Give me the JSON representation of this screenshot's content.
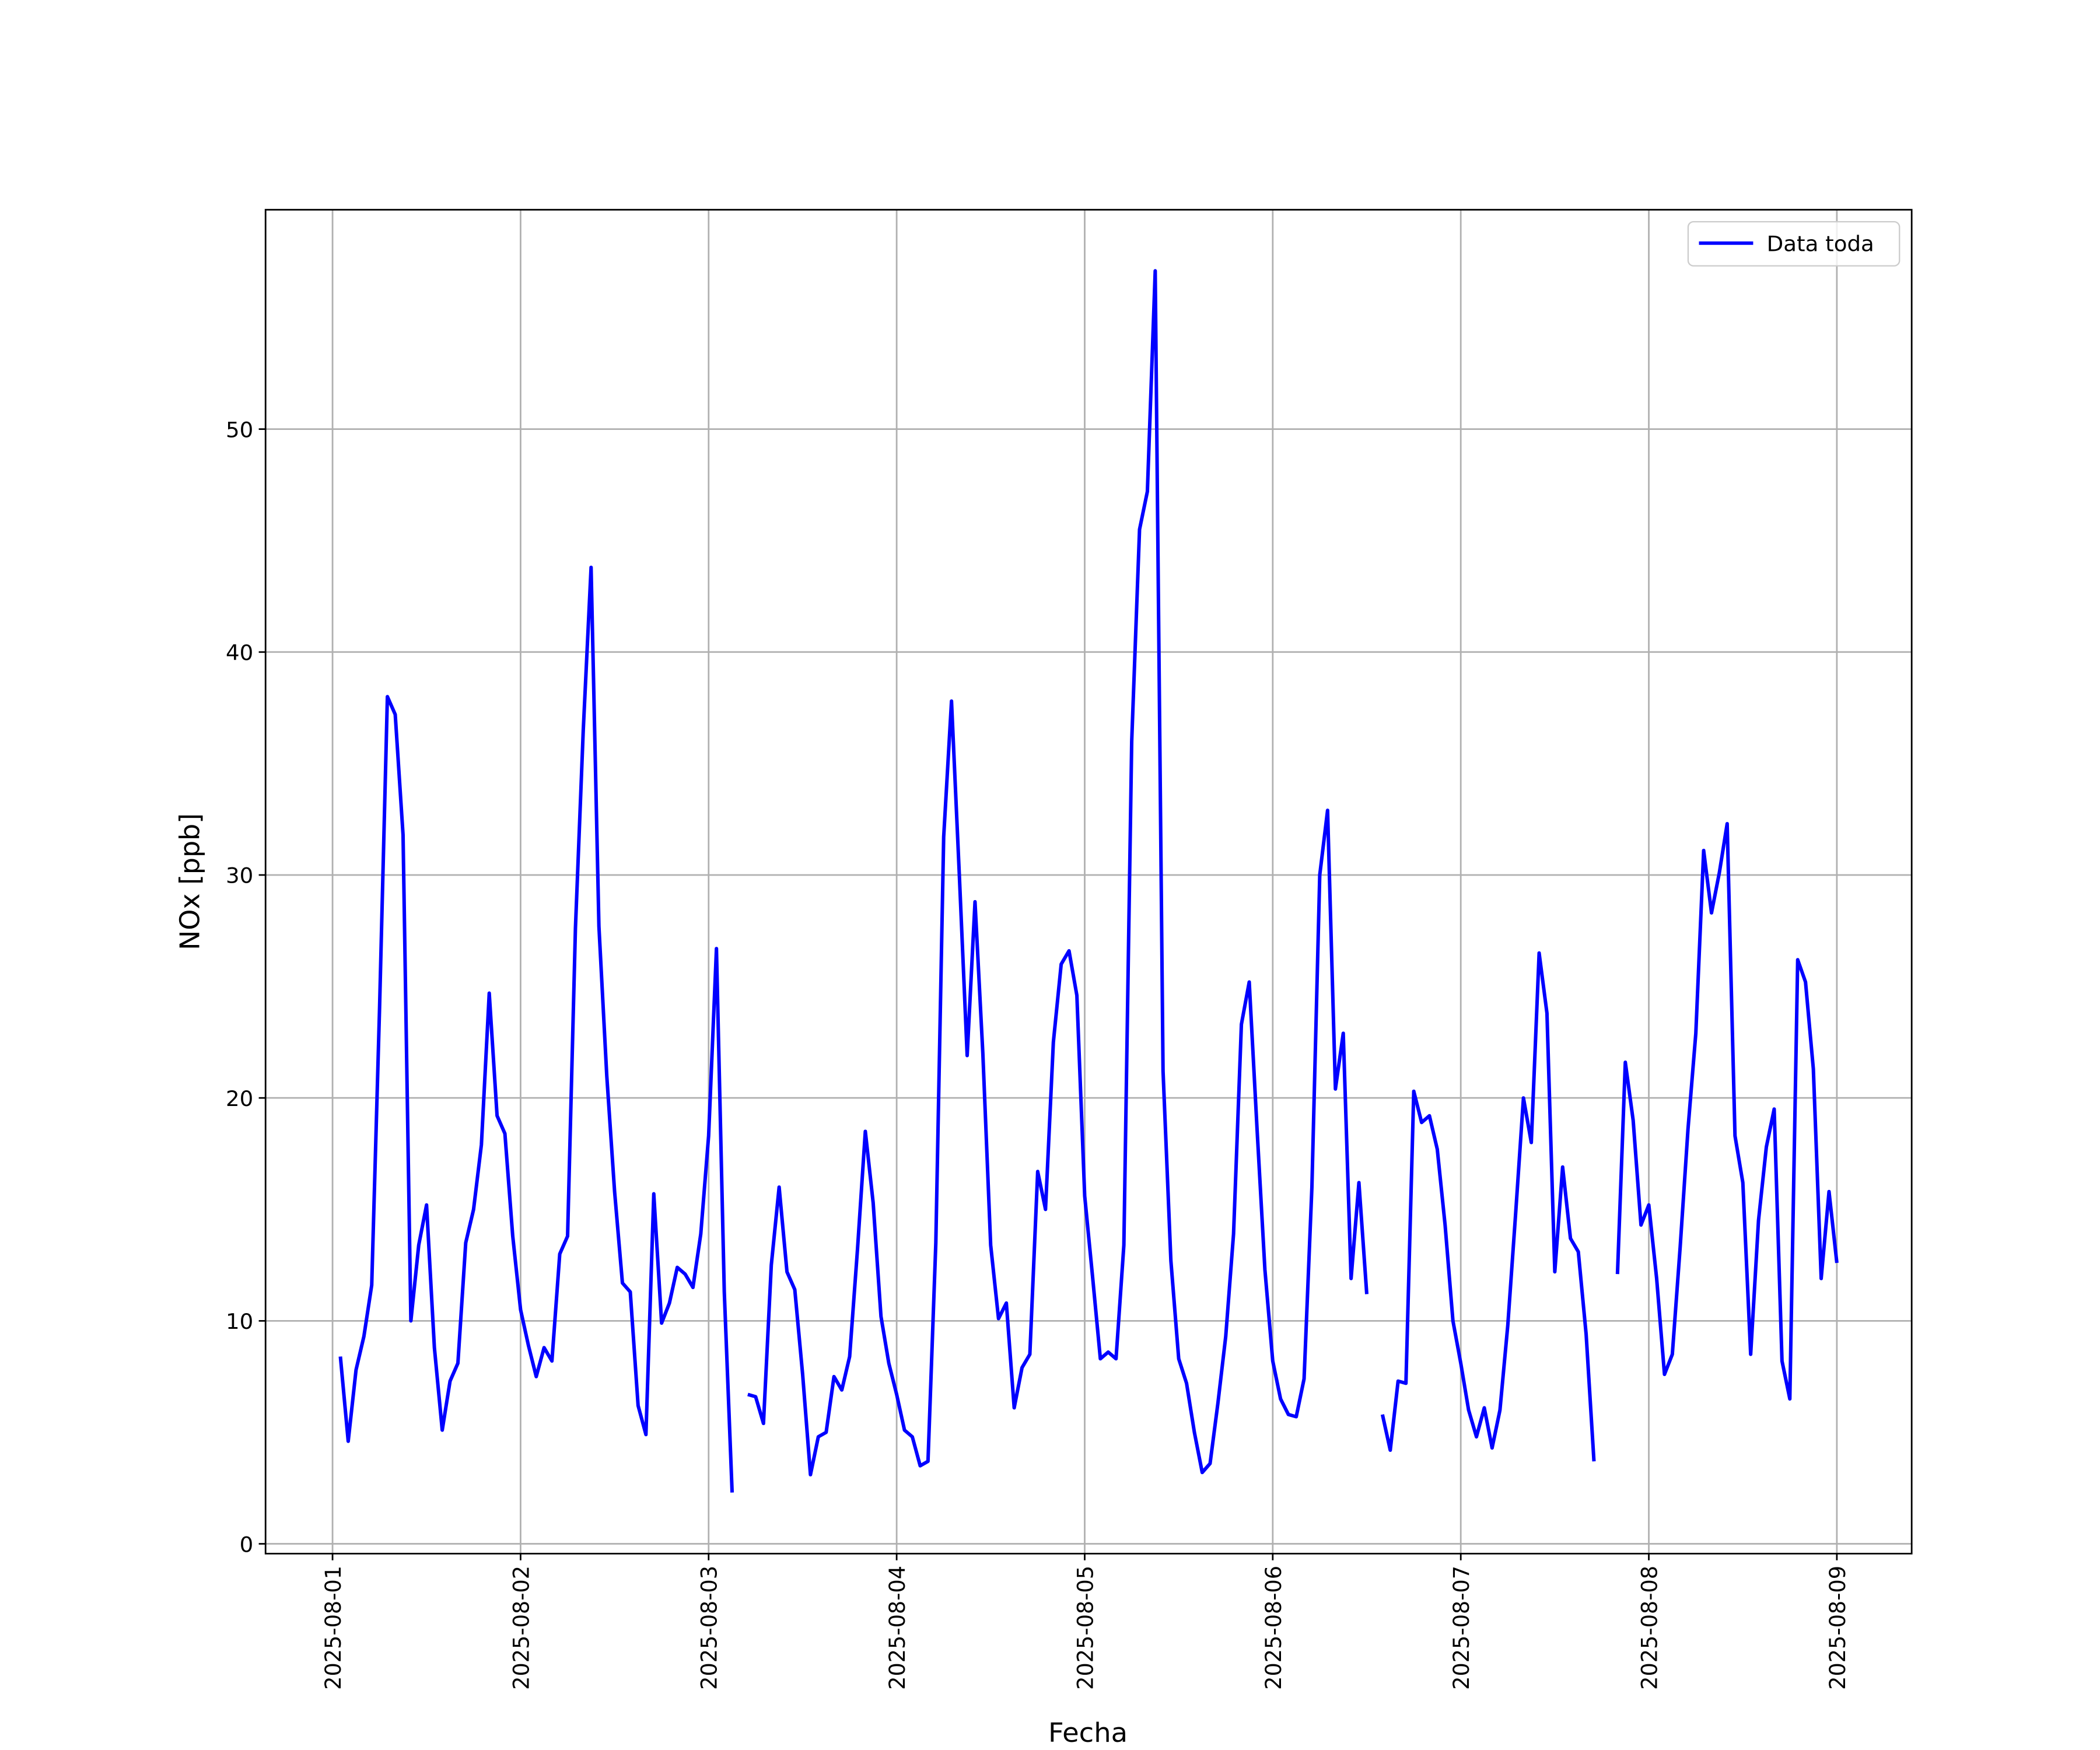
{
  "chart_data": {
    "type": "line",
    "xlabel": "Fecha",
    "ylabel": "NOx [ppb]",
    "x": [
      "2025-08-01 01:00",
      "2025-08-01 02:00",
      "2025-08-01 03:00",
      "2025-08-01 04:00",
      "2025-08-01 05:00",
      "2025-08-01 06:00",
      "2025-08-01 07:00",
      "2025-08-01 08:00",
      "2025-08-01 09:00",
      "2025-08-01 10:00",
      "2025-08-01 11:00",
      "2025-08-01 12:00",
      "2025-08-01 13:00",
      "2025-08-01 14:00",
      "2025-08-01 15:00",
      "2025-08-01 16:00",
      "2025-08-01 17:00",
      "2025-08-01 18:00",
      "2025-08-01 19:00",
      "2025-08-01 20:00",
      "2025-08-01 21:00",
      "2025-08-01 22:00",
      "2025-08-01 23:00",
      "2025-08-02 00:00",
      "2025-08-02 01:00",
      "2025-08-02 02:00",
      "2025-08-02 03:00",
      "2025-08-02 04:00",
      "2025-08-02 05:00",
      "2025-08-02 06:00",
      "2025-08-02 07:00",
      "2025-08-02 08:00",
      "2025-08-02 09:00",
      "2025-08-02 10:00",
      "2025-08-02 11:00",
      "2025-08-02 12:00",
      "2025-08-02 13:00",
      "2025-08-02 14:00",
      "2025-08-02 15:00",
      "2025-08-02 16:00",
      "2025-08-02 17:00",
      "2025-08-02 18:00",
      "2025-08-02 19:00",
      "2025-08-02 20:00",
      "2025-08-02 21:00",
      "2025-08-02 22:00",
      "2025-08-02 23:00",
      "2025-08-03 00:00",
      "2025-08-03 01:00",
      "2025-08-03 02:00",
      "2025-08-03 03:00",
      "2025-08-03 04:00",
      "2025-08-03 05:00",
      "2025-08-03 06:00",
      "2025-08-03 07:00",
      "2025-08-03 08:00",
      "2025-08-03 09:00",
      "2025-08-03 10:00",
      "2025-08-03 11:00",
      "2025-08-03 12:00",
      "2025-08-03 13:00",
      "2025-08-03 14:00",
      "2025-08-03 15:00",
      "2025-08-03 16:00",
      "2025-08-03 17:00",
      "2025-08-03 18:00",
      "2025-08-03 19:00",
      "2025-08-03 20:00",
      "2025-08-03 21:00",
      "2025-08-03 22:00",
      "2025-08-03 23:00",
      "2025-08-04 00:00",
      "2025-08-04 01:00",
      "2025-08-04 02:00",
      "2025-08-04 03:00",
      "2025-08-04 04:00",
      "2025-08-04 05:00",
      "2025-08-04 06:00",
      "2025-08-04 07:00",
      "2025-08-04 08:00",
      "2025-08-04 09:00",
      "2025-08-04 10:00",
      "2025-08-04 11:00",
      "2025-08-04 12:00",
      "2025-08-04 13:00",
      "2025-08-04 14:00",
      "2025-08-04 15:00",
      "2025-08-04 16:00",
      "2025-08-04 17:00",
      "2025-08-04 18:00",
      "2025-08-04 19:00",
      "2025-08-04 20:00",
      "2025-08-04 21:00",
      "2025-08-04 22:00",
      "2025-08-04 23:00",
      "2025-08-05 00:00",
      "2025-08-05 01:00",
      "2025-08-05 02:00",
      "2025-08-05 03:00",
      "2025-08-05 04:00",
      "2025-08-05 05:00",
      "2025-08-05 06:00",
      "2025-08-05 07:00",
      "2025-08-05 08:00",
      "2025-08-05 09:00",
      "2025-08-05 10:00",
      "2025-08-05 11:00",
      "2025-08-05 12:00",
      "2025-08-05 13:00",
      "2025-08-05 14:00",
      "2025-08-05 15:00",
      "2025-08-05 16:00",
      "2025-08-05 17:00",
      "2025-08-05 18:00",
      "2025-08-05 19:00",
      "2025-08-05 20:00",
      "2025-08-05 21:00",
      "2025-08-05 22:00",
      "2025-08-05 23:00",
      "2025-08-06 00:00",
      "2025-08-06 01:00",
      "2025-08-06 02:00",
      "2025-08-06 03:00",
      "2025-08-06 04:00",
      "2025-08-06 05:00",
      "2025-08-06 06:00",
      "2025-08-06 07:00",
      "2025-08-06 08:00",
      "2025-08-06 09:00",
      "2025-08-06 10:00",
      "2025-08-06 11:00",
      "2025-08-06 12:00",
      "2025-08-06 13:00",
      "2025-08-06 14:00",
      "2025-08-06 15:00",
      "2025-08-06 16:00",
      "2025-08-06 17:00",
      "2025-08-06 18:00",
      "2025-08-06 19:00",
      "2025-08-06 20:00",
      "2025-08-06 21:00",
      "2025-08-06 22:00",
      "2025-08-06 23:00",
      "2025-08-07 00:00",
      "2025-08-07 01:00",
      "2025-08-07 02:00",
      "2025-08-07 03:00",
      "2025-08-07 04:00",
      "2025-08-07 05:00",
      "2025-08-07 06:00",
      "2025-08-07 07:00",
      "2025-08-07 08:00",
      "2025-08-07 09:00",
      "2025-08-07 10:00",
      "2025-08-07 11:00",
      "2025-08-07 12:00",
      "2025-08-07 13:00",
      "2025-08-07 14:00",
      "2025-08-07 15:00",
      "2025-08-07 16:00",
      "2025-08-07 17:00",
      "2025-08-07 18:00",
      "2025-08-07 19:00",
      "2025-08-07 20:00",
      "2025-08-07 21:00",
      "2025-08-07 22:00",
      "2025-08-07 23:00",
      "2025-08-08 00:00",
      "2025-08-08 01:00",
      "2025-08-08 02:00",
      "2025-08-08 03:00",
      "2025-08-08 04:00",
      "2025-08-08 05:00",
      "2025-08-08 06:00",
      "2025-08-08 07:00",
      "2025-08-08 08:00",
      "2025-08-08 09:00",
      "2025-08-08 10:00",
      "2025-08-08 11:00",
      "2025-08-08 12:00",
      "2025-08-08 13:00",
      "2025-08-08 14:00",
      "2025-08-08 15:00",
      "2025-08-08 16:00",
      "2025-08-08 17:00",
      "2025-08-08 18:00",
      "2025-08-08 19:00",
      "2025-08-08 20:00",
      "2025-08-08 21:00",
      "2025-08-08 22:00",
      "2025-08-08 23:00",
      "2025-08-09 00:00"
    ],
    "series": [
      {
        "name": "Data toda",
        "color": "#0000ff",
        "values": [
          8.4,
          4.6,
          7.8,
          9.3,
          11.6,
          24,
          38,
          37.2,
          31.8,
          10,
          13.4,
          15.2,
          8.8,
          5.1,
          7.3,
          8.1,
          13.5,
          15,
          17.9,
          24.7,
          19.2,
          18.4,
          13.8,
          10.5,
          8.9,
          7.5,
          8.8,
          8.2,
          13,
          13.8,
          27.6,
          36.5,
          43.8,
          27.7,
          21,
          15.8,
          11.7,
          11.3,
          6.2,
          4.9,
          15.7,
          9.9,
          10.8,
          12.4,
          12.1,
          11.5,
          13.9,
          18.3,
          26.7,
          11.3,
          2.3,
          null,
          6.7,
          6.6,
          5.4,
          12.5,
          16,
          12.2,
          11.4,
          7.6,
          3.1,
          4.8,
          5,
          7.5,
          6.9,
          8.4,
          13.2,
          18.5,
          15.3,
          10.2,
          8.1,
          6.7,
          5.1,
          4.8,
          3.5,
          3.7,
          13.5,
          31.7,
          37.8,
          30,
          21.9,
          28.8,
          22,
          13.4,
          10.1,
          10.8,
          6.1,
          7.9,
          8.5,
          16.7,
          15,
          22.5,
          26,
          26.6,
          24.6,
          15.6,
          12,
          8.3,
          8.6,
          8.3,
          13.4,
          36,
          45.5,
          47.2,
          57.1,
          21.2,
          12.7,
          8.3,
          7.2,
          5,
          3.2,
          3.6,
          6.3,
          9.3,
          13.9,
          23.3,
          25.2,
          18.6,
          12.3,
          8.2,
          6.5,
          5.8,
          5.7,
          7.4,
          16,
          30,
          32.9,
          20.4,
          22.9,
          11.9,
          16.2,
          11.2,
          null,
          5.8,
          4.2,
          7.3,
          7.2,
          20.3,
          18.9,
          19.2,
          17.7,
          14.3,
          10,
          8.1,
          6,
          4.8,
          6.1,
          4.3,
          6,
          9.8,
          14.8,
          20,
          18,
          26.5,
          23.8,
          12.2,
          16.9,
          13.7,
          13.1,
          9.4,
          3.7,
          null,
          null,
          12.1,
          21.6,
          19,
          14.3,
          15.2,
          11.9,
          7.6,
          8.5,
          13.3,
          18.6,
          22.9,
          31.1,
          28.3,
          30.1,
          32.3,
          18.3,
          16.2,
          8.5,
          14.5,
          17.8,
          19.5,
          8.2,
          6.5,
          26.2,
          25.2,
          21.3,
          11.9,
          15.8,
          12.6
        ]
      }
    ],
    "xlim": [
      "2025-07-31 15:27",
      "2025-08-09 09:33"
    ],
    "xticks": [
      "2025-08-01",
      "2025-08-02",
      "2025-08-03",
      "2025-08-04",
      "2025-08-05",
      "2025-08-06",
      "2025-08-07",
      "2025-08-08",
      "2025-08-09"
    ],
    "ylim": [
      -0.44,
      59.84
    ],
    "yticks": [
      0,
      10,
      20,
      30,
      40,
      50
    ],
    "grid": true,
    "legend": "upper right"
  }
}
